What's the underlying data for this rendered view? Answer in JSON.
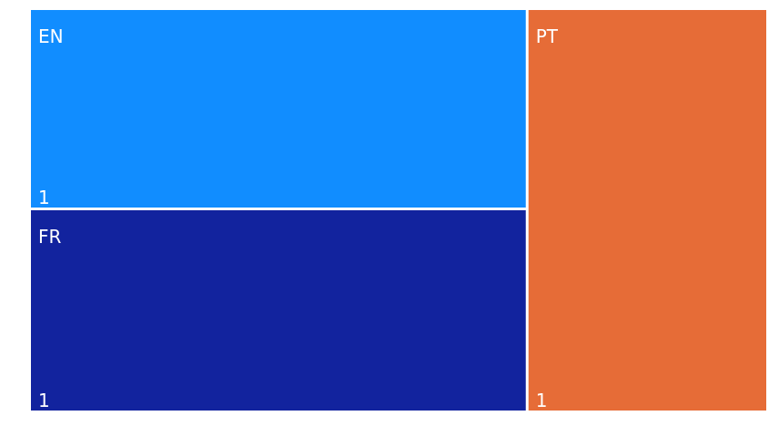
{
  "chart_data": {
    "type": "treemap",
    "items": [
      {
        "name": "EN",
        "value": 1,
        "color": "#118DFF"
      },
      {
        "name": "FR",
        "value": 1,
        "color": "#12239E"
      },
      {
        "name": "PT",
        "value": 1,
        "color": "#E66C37"
      }
    ],
    "layout": "column-split"
  }
}
